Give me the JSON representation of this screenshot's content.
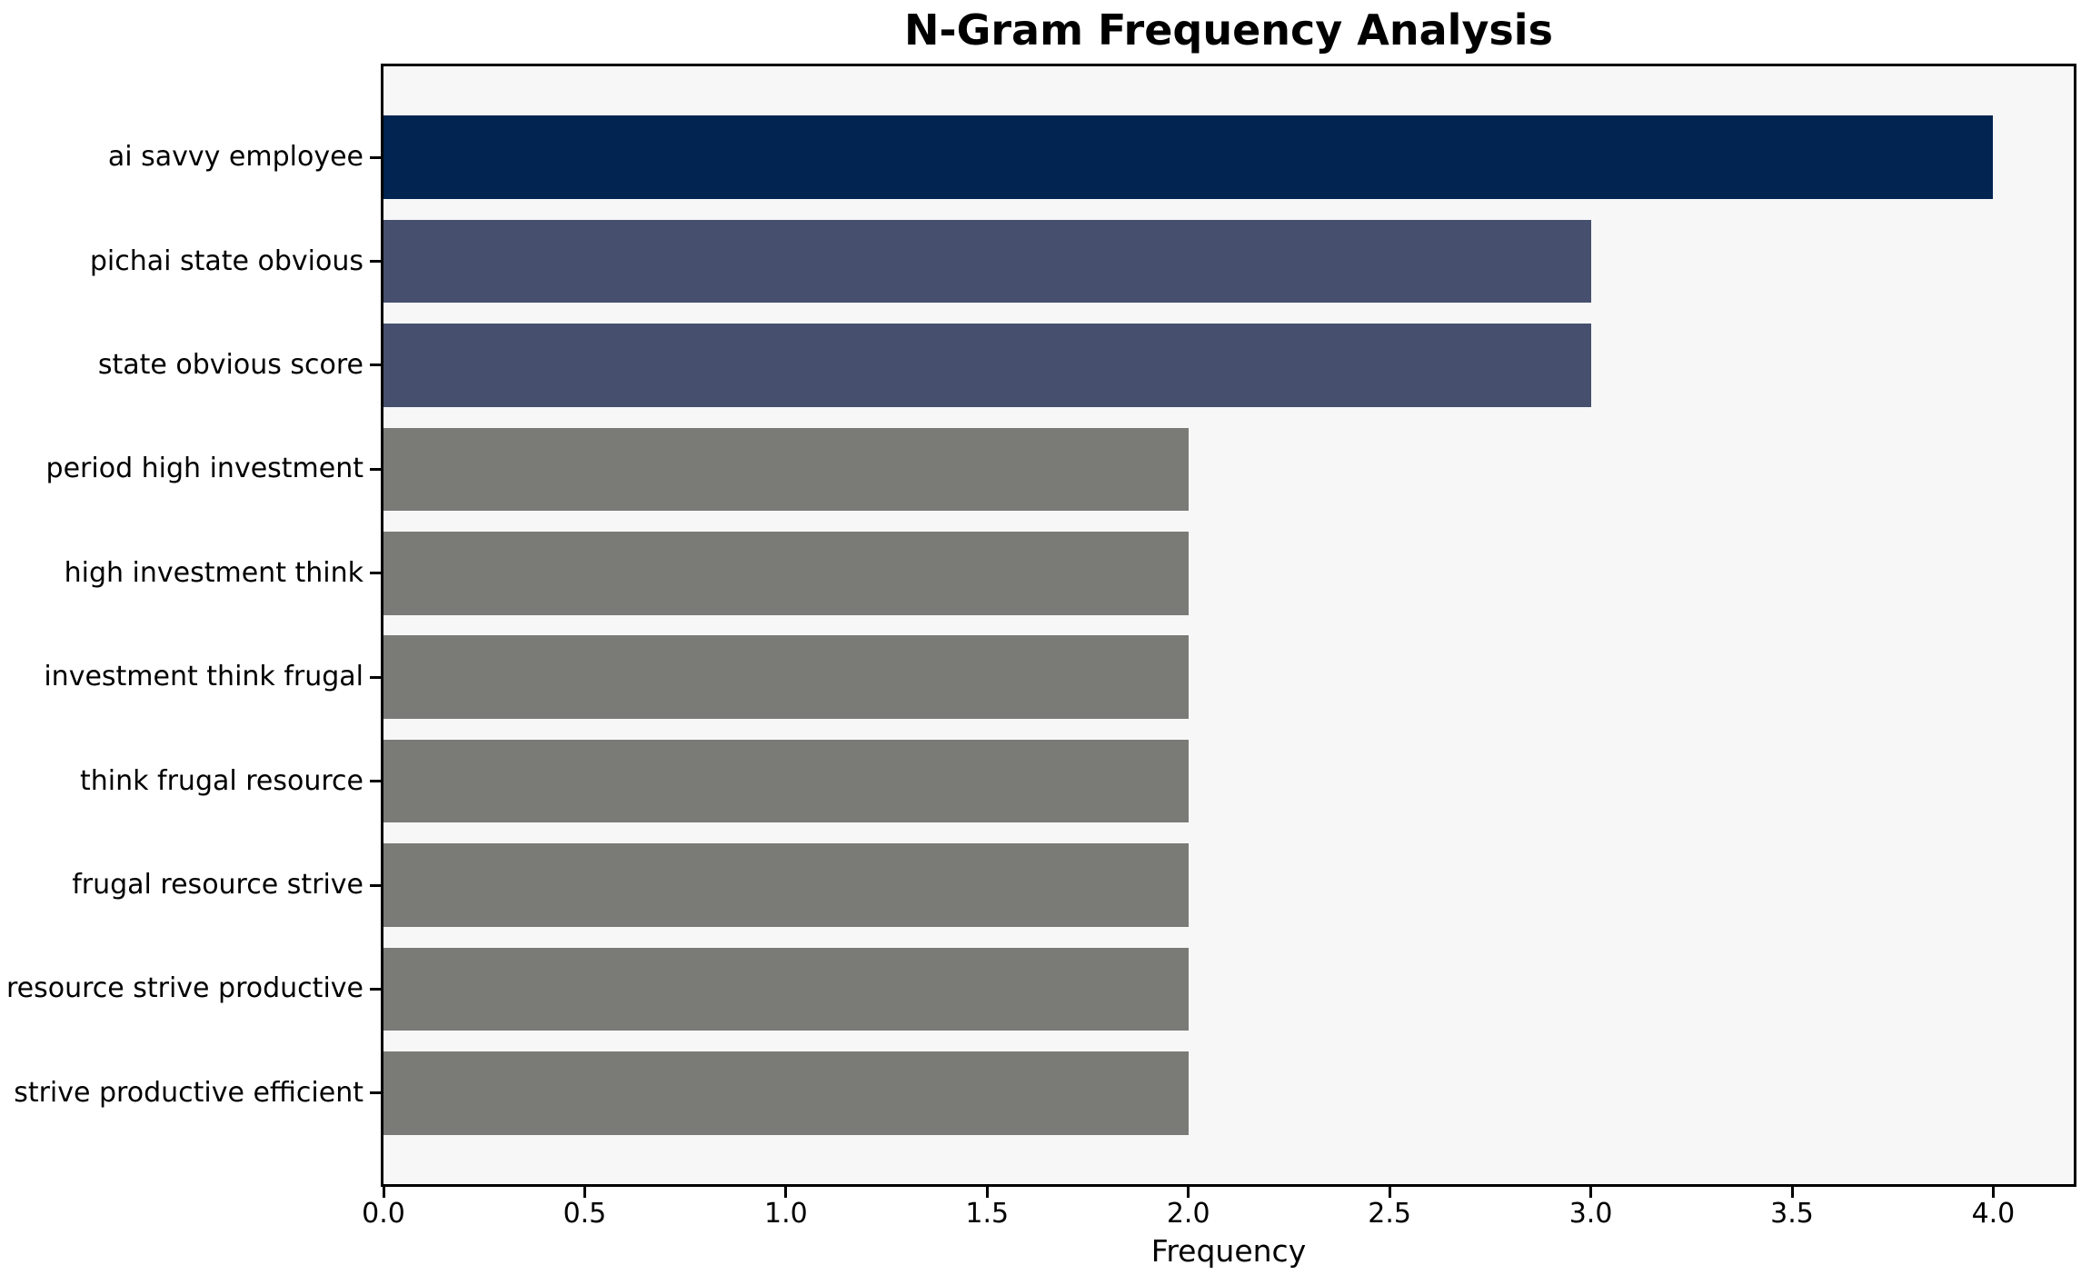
{
  "chart_data": {
    "type": "bar",
    "orientation": "horizontal",
    "title": "N-Gram Frequency Analysis",
    "xlabel": "Frequency",
    "ylabel": "",
    "categories": [
      "ai savvy employee",
      "pichai state obvious",
      "state obvious score",
      "period high investment",
      "high investment think",
      "investment think frugal",
      "think frugal resource",
      "frugal resource strive",
      "resource strive productive",
      "strive productive efficient"
    ],
    "values": [
      4,
      3,
      3,
      2,
      2,
      2,
      2,
      2,
      2,
      2
    ],
    "bar_colors": [
      "#012450",
      "#46506e",
      "#46506e",
      "#7a7a77",
      "#7a7a77",
      "#7a7a77",
      "#7a7a77",
      "#7a7a77",
      "#7a7a77",
      "#7a7a77"
    ],
    "xlim": [
      0,
      4.2
    ],
    "x_ticks": [
      "0.0",
      "0.5",
      "1.0",
      "1.5",
      "2.0",
      "2.5",
      "3.0",
      "3.5",
      "4.0"
    ],
    "x_tick_values": [
      0,
      0.5,
      1,
      1.5,
      2,
      2.5,
      3,
      3.5,
      4
    ],
    "grid": false,
    "legend": null,
    "colors": {
      "plot_background": "#f7f7f8",
      "figure_background": "#ffffff",
      "spine": "#000000",
      "text": "#000000"
    }
  }
}
